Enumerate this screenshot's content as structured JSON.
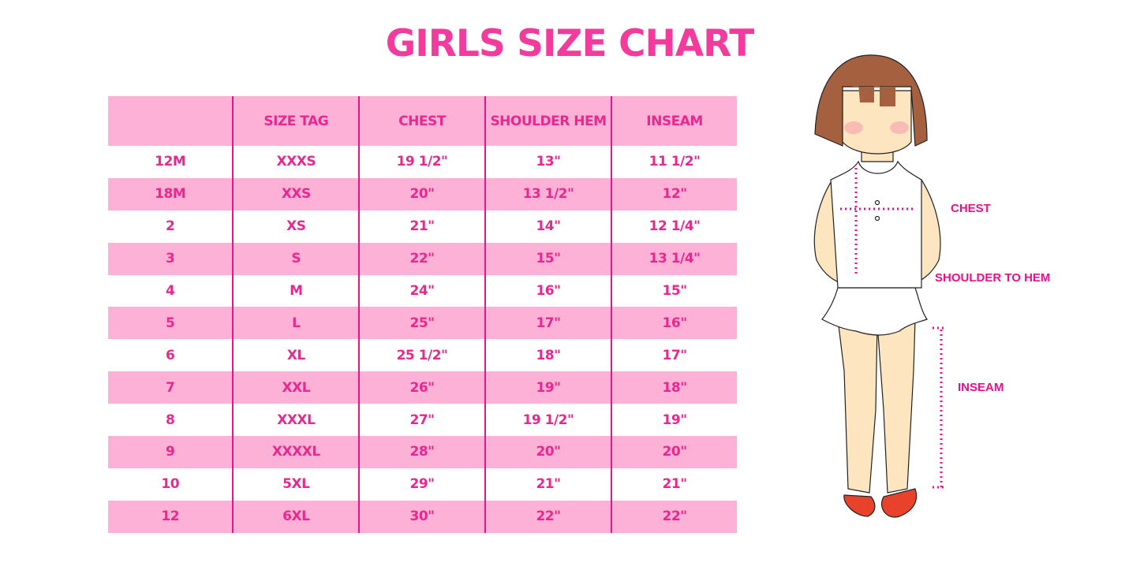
{
  "title": "GIRLS SIZE CHART",
  "table": {
    "headers": [
      "",
      "SIZE TAG",
      "CHEST",
      "SHOULDER HEM",
      "INSEAM"
    ],
    "rows": [
      [
        "12M",
        "XXXS",
        "19 1/2\"",
        "13\"",
        "11 1/2\""
      ],
      [
        "18M",
        "XXS",
        "20\"",
        "13 1/2\"",
        "12\""
      ],
      [
        "2",
        "XS",
        "21\"",
        "14\"",
        "12 1/4\""
      ],
      [
        "3",
        "S",
        "22\"",
        "15\"",
        "13 1/4\""
      ],
      [
        "4",
        "M",
        "24\"",
        "16\"",
        "15\""
      ],
      [
        "5",
        "L",
        "25\"",
        "17\"",
        "16\""
      ],
      [
        "6",
        "XL",
        "25 1/2\"",
        "18\"",
        "17\""
      ],
      [
        "7",
        "XXL",
        "26\"",
        "19\"",
        "18\""
      ],
      [
        "8",
        "XXXL",
        "27\"",
        "19 1/2\"",
        "19\""
      ],
      [
        "9",
        "XXXXL",
        "28\"",
        "20\"",
        "20\""
      ],
      [
        "10",
        "5XL",
        "29\"",
        "21\"",
        "21\""
      ],
      [
        "12",
        "6XL",
        "30\"",
        "22\"",
        "22\""
      ]
    ]
  },
  "figure": {
    "labels": {
      "chest": "CHEST",
      "shoulder_to_hem": "SHOULDER TO HEM",
      "inseam": "INSEAM"
    }
  },
  "colors": {
    "accent": "#f23b9d",
    "row_pink": "#fdb1d6",
    "divider": "#e0168a",
    "hair": "#a5603f",
    "skin": "#fde5c0",
    "shoes": "#e8412c"
  }
}
